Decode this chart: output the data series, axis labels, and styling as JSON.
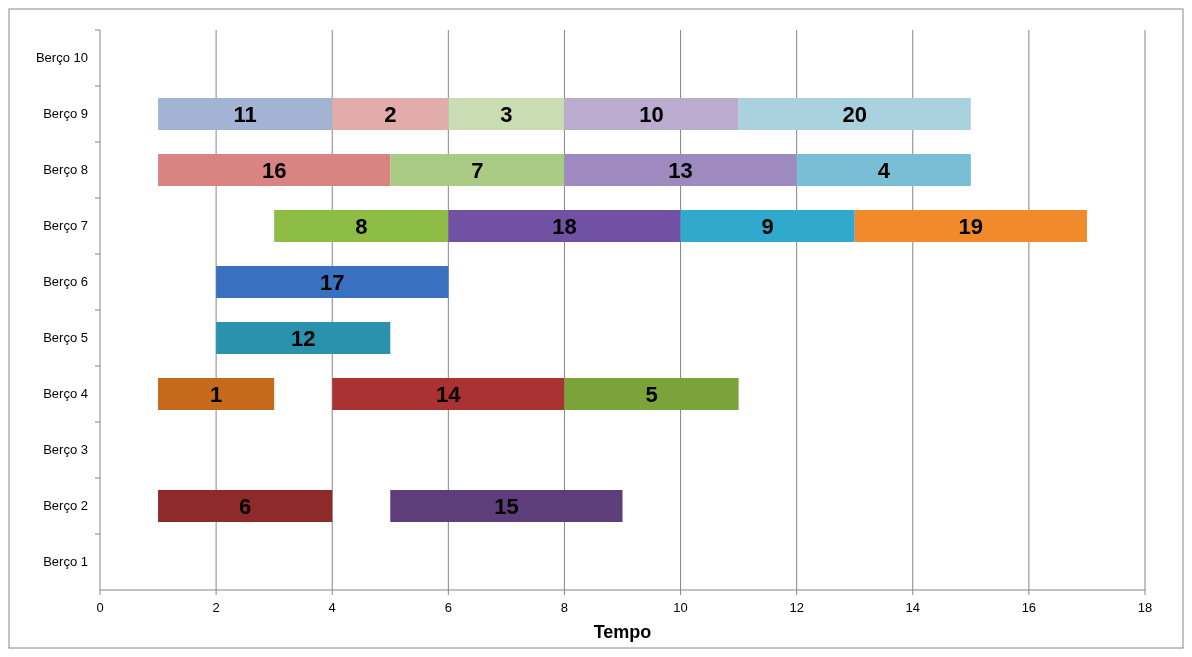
{
  "chart_data": {
    "type": "bar",
    "orientation": "horizontal",
    "xlabel": "Tempo",
    "categories": [
      "Berço 10",
      "Berço 9",
      "Berço 8",
      "Berço 7",
      "Berço 6",
      "Berço 5",
      "Berço 4",
      "Berço 3",
      "Berço 2",
      "Berço 1"
    ],
    "xlim": [
      0,
      18
    ],
    "xticks": [
      0,
      2,
      4,
      6,
      8,
      10,
      12,
      14,
      16,
      18
    ],
    "grid": "x",
    "legend": false,
    "series": [
      {
        "name": "11",
        "color": "#a3b3d3",
        "base": [
          null,
          1,
          null,
          null,
          null,
          null,
          null,
          null,
          null,
          null
        ],
        "values": [
          null,
          3,
          null,
          null,
          null,
          null,
          null,
          null,
          null,
          null
        ]
      },
      {
        "name": "2",
        "color": "#e2acaa",
        "base": [
          null,
          4,
          null,
          null,
          null,
          null,
          null,
          null,
          null,
          null
        ],
        "values": [
          null,
          2,
          null,
          null,
          null,
          null,
          null,
          null,
          null,
          null
        ]
      },
      {
        "name": "3",
        "color": "#cadcb2",
        "base": [
          null,
          6,
          null,
          null,
          null,
          null,
          null,
          null,
          null,
          null
        ],
        "values": [
          null,
          2,
          null,
          null,
          null,
          null,
          null,
          null,
          null,
          null
        ]
      },
      {
        "name": "10",
        "color": "#bbaccf",
        "base": [
          null,
          8,
          null,
          null,
          null,
          null,
          null,
          null,
          null,
          null
        ],
        "values": [
          null,
          3,
          null,
          null,
          null,
          null,
          null,
          null,
          null,
          null
        ]
      },
      {
        "name": "20",
        "color": "#aad2de",
        "base": [
          null,
          11,
          null,
          null,
          null,
          null,
          null,
          null,
          null,
          null
        ],
        "values": [
          null,
          4,
          null,
          null,
          null,
          null,
          null,
          null,
          null,
          null
        ]
      },
      {
        "name": "16",
        "color": "#d98482",
        "base": [
          null,
          null,
          1,
          null,
          null,
          null,
          null,
          null,
          null,
          null
        ],
        "values": [
          null,
          null,
          4,
          null,
          null,
          null,
          null,
          null,
          null,
          null
        ]
      },
      {
        "name": "7",
        "color": "#aacb84",
        "base": [
          null,
          null,
          5,
          null,
          null,
          null,
          null,
          null,
          null,
          null
        ],
        "values": [
          null,
          null,
          3,
          null,
          null,
          null,
          null,
          null,
          null,
          null
        ]
      },
      {
        "name": "13",
        "color": "#9f8abf",
        "base": [
          null,
          null,
          8,
          null,
          null,
          null,
          null,
          null,
          null,
          null
        ],
        "values": [
          null,
          null,
          4,
          null,
          null,
          null,
          null,
          null,
          null,
          null
        ]
      },
      {
        "name": "4",
        "color": "#7abed6",
        "base": [
          null,
          null,
          12,
          null,
          null,
          null,
          null,
          null,
          null,
          null
        ],
        "values": [
          null,
          null,
          3,
          null,
          null,
          null,
          null,
          null,
          null,
          null
        ]
      },
      {
        "name": "8",
        "color": "#8dbd45",
        "base": [
          null,
          null,
          null,
          3,
          null,
          null,
          null,
          null,
          null,
          null
        ],
        "values": [
          null,
          null,
          null,
          3,
          null,
          null,
          null,
          null,
          null,
          null
        ]
      },
      {
        "name": "18",
        "color": "#7151a3",
        "base": [
          null,
          null,
          null,
          6,
          null,
          null,
          null,
          null,
          null,
          null
        ],
        "values": [
          null,
          null,
          null,
          4,
          null,
          null,
          null,
          null,
          null,
          null
        ]
      },
      {
        "name": "9",
        "color": "#31a9cd",
        "base": [
          null,
          null,
          null,
          10,
          null,
          null,
          null,
          null,
          null,
          null
        ],
        "values": [
          null,
          null,
          null,
          3,
          null,
          null,
          null,
          null,
          null,
          null
        ]
      },
      {
        "name": "19",
        "color": "#f18a2a",
        "base": [
          null,
          null,
          null,
          13,
          null,
          null,
          null,
          null,
          null,
          null
        ],
        "values": [
          null,
          null,
          null,
          4,
          null,
          null,
          null,
          null,
          null,
          null
        ]
      },
      {
        "name": "17",
        "color": "#3a70c0",
        "base": [
          null,
          null,
          null,
          null,
          2,
          null,
          null,
          null,
          null,
          null
        ],
        "values": [
          null,
          null,
          null,
          null,
          4,
          null,
          null,
          null,
          null,
          null
        ]
      },
      {
        "name": "12",
        "color": "#2a92ac",
        "base": [
          null,
          null,
          null,
          null,
          null,
          2,
          null,
          null,
          null,
          null
        ],
        "values": [
          null,
          null,
          null,
          null,
          null,
          3,
          null,
          null,
          null,
          null
        ]
      },
      {
        "name": "1",
        "color": "#c46a1a",
        "base": [
          null,
          null,
          null,
          null,
          null,
          null,
          1,
          null,
          null,
          null
        ],
        "values": [
          null,
          null,
          null,
          null,
          null,
          null,
          2,
          null,
          null,
          null
        ]
      },
      {
        "name": "14",
        "color": "#ab3232",
        "base": [
          null,
          null,
          null,
          null,
          null,
          null,
          4,
          null,
          null,
          null
        ],
        "values": [
          null,
          null,
          null,
          null,
          null,
          null,
          4,
          null,
          null,
          null
        ]
      },
      {
        "name": "5",
        "color": "#7aa33a",
        "base": [
          null,
          null,
          null,
          null,
          null,
          null,
          8,
          null,
          null,
          null
        ],
        "values": [
          null,
          null,
          null,
          null,
          null,
          null,
          3,
          null,
          null,
          null
        ]
      },
      {
        "name": "6",
        "color": "#8e2a2a",
        "base": [
          null,
          null,
          null,
          null,
          null,
          null,
          null,
          null,
          1,
          null
        ],
        "values": [
          null,
          null,
          null,
          null,
          null,
          null,
          null,
          null,
          3,
          null
        ]
      },
      {
        "name": "15",
        "color": "#5d3d7a",
        "base": [
          null,
          null,
          null,
          null,
          null,
          null,
          null,
          null,
          5,
          null
        ],
        "values": [
          null,
          null,
          null,
          null,
          null,
          null,
          null,
          null,
          4,
          null
        ]
      }
    ]
  }
}
